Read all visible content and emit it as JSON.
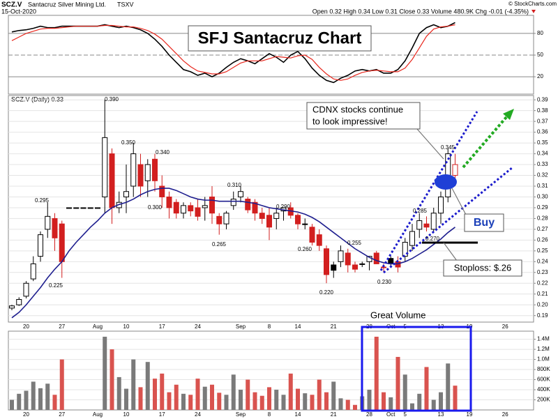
{
  "header": {
    "symbol": "SCZ.V",
    "name": "Santacruz Silver Mining Ltd.",
    "exchange": "TSXV",
    "date": "15-Oct-2020",
    "quote": "Open 0.32 High 0.34 Low 0.31 Close 0.33 Volume 480.9K Chg -0.01 (-4.35%)",
    "copyright": "© StockCharts.com"
  },
  "chart_data": [
    {
      "type": "line",
      "title": "SFJ Santacruz Chart",
      "ylim": [
        -4,
        105
      ],
      "yticks": [
        20,
        50,
        80
      ],
      "series": [
        {
          "color": "#000000",
          "values": [
            82,
            84,
            85,
            87,
            90,
            88,
            88,
            90,
            90,
            90,
            90,
            90,
            90,
            92,
            90,
            88,
            90,
            88,
            85,
            80,
            72,
            62,
            50,
            40,
            30,
            27,
            22,
            25,
            20,
            25,
            33,
            40,
            45,
            42,
            38,
            45,
            52,
            47,
            40,
            50,
            55,
            45,
            32,
            22,
            15,
            12,
            18,
            22,
            28,
            30,
            28,
            30,
            25,
            25,
            30,
            42,
            60,
            80,
            88,
            92,
            88,
            90,
            95,
            null,
            null,
            null,
            null,
            null,
            null,
            null,
            null,
            null
          ]
        },
        {
          "color": "#e8261c",
          "values": [
            70,
            75,
            80,
            83,
            86,
            87,
            87,
            88,
            89,
            90,
            90,
            90,
            90,
            91,
            91,
            90,
            89,
            89,
            87,
            84,
            79,
            72,
            62,
            52,
            42,
            34,
            28,
            26,
            24,
            24,
            27,
            33,
            39,
            42,
            42,
            42,
            45,
            48,
            47,
            46,
            49,
            50,
            44,
            33,
            24,
            17,
            15,
            17,
            22,
            26,
            28,
            29,
            28,
            27,
            27,
            32,
            44,
            60,
            76,
            86,
            89,
            90,
            92,
            null,
            null,
            null,
            null,
            null,
            null,
            null,
            null,
            null
          ]
        }
      ]
    },
    {
      "type": "candlestick",
      "legend": "SCZ.V (Daily) 0.33",
      "categories": [
        null,
        null,
        "20",
        null,
        null,
        null,
        null,
        "27",
        null,
        null,
        null,
        null,
        "Aug",
        null,
        null,
        null,
        "10",
        null,
        null,
        null,
        null,
        "17",
        null,
        null,
        null,
        null,
        "24",
        null,
        null,
        null,
        null,
        null,
        "Sep",
        null,
        null,
        null,
        "8",
        null,
        null,
        null,
        "14",
        null,
        null,
        null,
        null,
        "21",
        null,
        null,
        null,
        null,
        "28",
        null,
        null,
        "Oct",
        null,
        "5",
        null,
        null,
        null,
        null,
        "13",
        null,
        null,
        null,
        "19",
        null,
        null,
        null,
        null,
        "26",
        null,
        null
      ],
      "open": [
        0.197,
        0.2,
        0.208,
        0.224,
        0.245,
        0.27,
        0.28,
        0.275,
        0.29,
        0.29,
        0.29,
        0.29,
        0.29,
        0.3,
        0.34,
        0.29,
        0.3,
        0.31,
        0.33,
        0.315,
        0.335,
        0.31,
        0.3,
        0.295,
        0.285,
        0.292,
        0.29,
        0.29,
        0.3,
        0.282,
        0.275,
        0.292,
        0.3,
        0.298,
        0.295,
        0.285,
        0.283,
        0.28,
        0.287,
        0.29,
        0.283,
        0.275,
        0.272,
        0.265,
        0.252,
        0.237,
        0.24,
        0.248,
        0.237,
        0.238,
        0.24,
        0.248,
        0.235,
        0.243,
        0.24,
        0.245,
        0.255,
        0.27,
        0.275,
        0.27,
        0.285,
        0.3,
        0.32,
        null,
        null,
        null,
        null,
        null,
        null,
        null,
        null,
        null
      ],
      "high": [
        0.2,
        0.207,
        0.222,
        0.245,
        0.268,
        0.295,
        0.285,
        0.278,
        0.29,
        0.29,
        0.29,
        0.29,
        0.29,
        0.39,
        0.345,
        0.305,
        0.33,
        0.35,
        0.34,
        0.335,
        0.34,
        0.32,
        0.305,
        0.298,
        0.295,
        0.295,
        0.298,
        0.3,
        0.31,
        0.285,
        0.287,
        0.305,
        0.31,
        0.3,
        0.298,
        0.29,
        0.29,
        0.29,
        0.29,
        0.295,
        0.285,
        0.28,
        0.275,
        0.27,
        0.255,
        0.24,
        0.255,
        0.252,
        0.24,
        0.24,
        0.245,
        0.25,
        0.238,
        0.245,
        0.245,
        0.262,
        0.275,
        0.285,
        0.282,
        0.29,
        0.305,
        0.345,
        0.34,
        null,
        null,
        null,
        null,
        null,
        null,
        null,
        null,
        null
      ],
      "low": [
        0.195,
        0.199,
        0.206,
        0.222,
        0.24,
        0.262,
        0.25,
        0.225,
        0.29,
        0.29,
        0.29,
        0.29,
        0.29,
        0.285,
        0.275,
        0.285,
        0.285,
        0.3,
        0.3,
        0.3,
        0.305,
        0.29,
        0.28,
        0.28,
        0.28,
        0.282,
        0.278,
        0.278,
        0.275,
        0.265,
        0.27,
        0.288,
        0.295,
        0.285,
        0.278,
        0.275,
        0.26,
        0.27,
        0.278,
        0.28,
        0.27,
        0.27,
        0.255,
        0.25,
        0.22,
        0.225,
        0.235,
        0.23,
        0.23,
        0.235,
        0.232,
        0.238,
        0.23,
        0.235,
        0.23,
        0.24,
        0.25,
        0.262,
        0.268,
        0.268,
        0.275,
        0.295,
        0.31,
        null,
        null,
        null,
        null,
        null,
        null,
        null,
        null,
        null
      ],
      "close": [
        0.199,
        0.205,
        0.22,
        0.238,
        0.265,
        0.282,
        0.262,
        0.24,
        0.29,
        0.29,
        0.29,
        0.29,
        0.29,
        0.355,
        0.29,
        0.295,
        0.305,
        0.34,
        0.31,
        0.33,
        0.315,
        0.3,
        0.29,
        0.285,
        0.292,
        0.287,
        0.282,
        0.292,
        0.285,
        0.275,
        0.285,
        0.298,
        0.305,
        0.288,
        0.285,
        0.28,
        0.272,
        0.285,
        0.29,
        0.283,
        0.275,
        0.275,
        0.258,
        0.255,
        0.228,
        0.232,
        0.25,
        0.237,
        0.233,
        0.238,
        0.245,
        0.238,
        0.235,
        0.238,
        0.235,
        0.258,
        0.268,
        0.278,
        0.272,
        0.285,
        0.3,
        0.34,
        0.33,
        null,
        null,
        null,
        null,
        null,
        null,
        null,
        null,
        null
      ],
      "up_color": "#000000",
      "down_color": "#d21f1f",
      "ma_values": [
        0.188,
        0.193,
        0.2,
        0.208,
        0.216,
        0.225,
        0.233,
        0.24,
        0.25,
        0.258,
        0.265,
        0.272,
        0.278,
        0.285,
        0.29,
        0.293,
        0.295,
        0.298,
        0.302,
        0.305,
        0.307,
        0.308,
        0.308,
        0.306,
        0.303,
        0.3,
        0.298,
        0.297,
        0.297,
        0.296,
        0.296,
        0.296,
        0.296,
        0.295,
        0.294,
        0.292,
        0.29,
        0.289,
        0.288,
        0.287,
        0.286,
        0.284,
        0.281,
        0.277,
        0.272,
        0.267,
        0.262,
        0.257,
        0.252,
        0.248,
        0.244,
        0.241,
        0.239,
        0.238,
        0.238,
        0.24,
        0.243,
        0.247,
        0.251,
        0.256,
        0.261,
        0.267,
        0.272,
        null,
        null,
        null,
        null,
        null,
        null,
        null,
        null,
        null
      ],
      "ma_color": "#1f1f8f",
      "ylim": [
        0.184,
        0.394
      ],
      "yticks": [
        0.19,
        {
          "value": 0.2,
          "label": "0.20"
        },
        0.21,
        0.22,
        0.23,
        0.24,
        0.25,
        0.26,
        0.27,
        0.28,
        0.29,
        {
          "value": 0.3,
          "label": "0.30"
        },
        0.31,
        0.32,
        0.33,
        0.34,
        0.35,
        0.36,
        0.37,
        0.38,
        0.39
      ],
      "grid": true,
      "price_labels": [
        "0.390",
        "0.350",
        "0.340",
        "0.300",
        "0.310",
        "0.290",
        "0.265",
        "0.260",
        "0.255",
        "0.225",
        "0.220",
        "0.230",
        "0.285",
        "0.270",
        "0.345",
        "0.295"
      ],
      "annotations": {
        "callout": [
          "CDNX stocks continue",
          "to look impressive!"
        ],
        "buy": "Buy",
        "stoploss": "Stoploss: $.26"
      }
    },
    {
      "type": "bar",
      "annotation": "Great Volume",
      "categories": [
        null,
        null,
        "20",
        null,
        null,
        null,
        null,
        "27",
        null,
        null,
        null,
        null,
        "Aug",
        null,
        null,
        null,
        "10",
        null,
        null,
        null,
        null,
        "17",
        null,
        null,
        null,
        null,
        "24",
        null,
        null,
        null,
        null,
        null,
        "Sep",
        null,
        null,
        null,
        "8",
        null,
        null,
        null,
        "14",
        null,
        null,
        null,
        null,
        "21",
        null,
        null,
        null,
        null,
        "28",
        null,
        null,
        "Oct",
        null,
        "5",
        null,
        null,
        null,
        null,
        "13",
        null,
        null,
        null,
        "19",
        null,
        null,
        null,
        null,
        "26",
        null,
        null
      ],
      "values": [
        200000,
        320000,
        380000,
        560000,
        430000,
        520000,
        300000,
        1000000,
        0,
        0,
        0,
        0,
        0,
        1450000,
        1200000,
        650000,
        420000,
        1000000,
        450000,
        950000,
        620000,
        720000,
        350000,
        500000,
        320000,
        300000,
        620000,
        460000,
        500000,
        340000,
        300000,
        700000,
        400000,
        600000,
        350000,
        280000,
        450000,
        400000,
        300000,
        720000,
        420000,
        330000,
        300000,
        600000,
        350000,
        560000,
        230000,
        200000,
        100000,
        270000,
        400000,
        1450000,
        350000,
        250000,
        1050000,
        700000,
        130000,
        320000,
        850000,
        200000,
        350000,
        920000,
        480900,
        null,
        null,
        null,
        null,
        null,
        null,
        null,
        null,
        null
      ],
      "up_color": "#7a7a7a",
      "down_color": "#d9534f",
      "ylim": [
        0,
        1560000
      ],
      "yticks": [
        {
          "value": 200000,
          "label": "200K"
        },
        {
          "value": 400000,
          "label": "400K"
        },
        {
          "value": 600000,
          "label": "600K"
        },
        {
          "value": 800000,
          "label": "800K"
        },
        {
          "value": 1000000,
          "label": "1.0M"
        },
        {
          "value": 1200000,
          "label": "1.2M"
        },
        {
          "value": 1400000,
          "label": "1.4M"
        }
      ]
    }
  ]
}
